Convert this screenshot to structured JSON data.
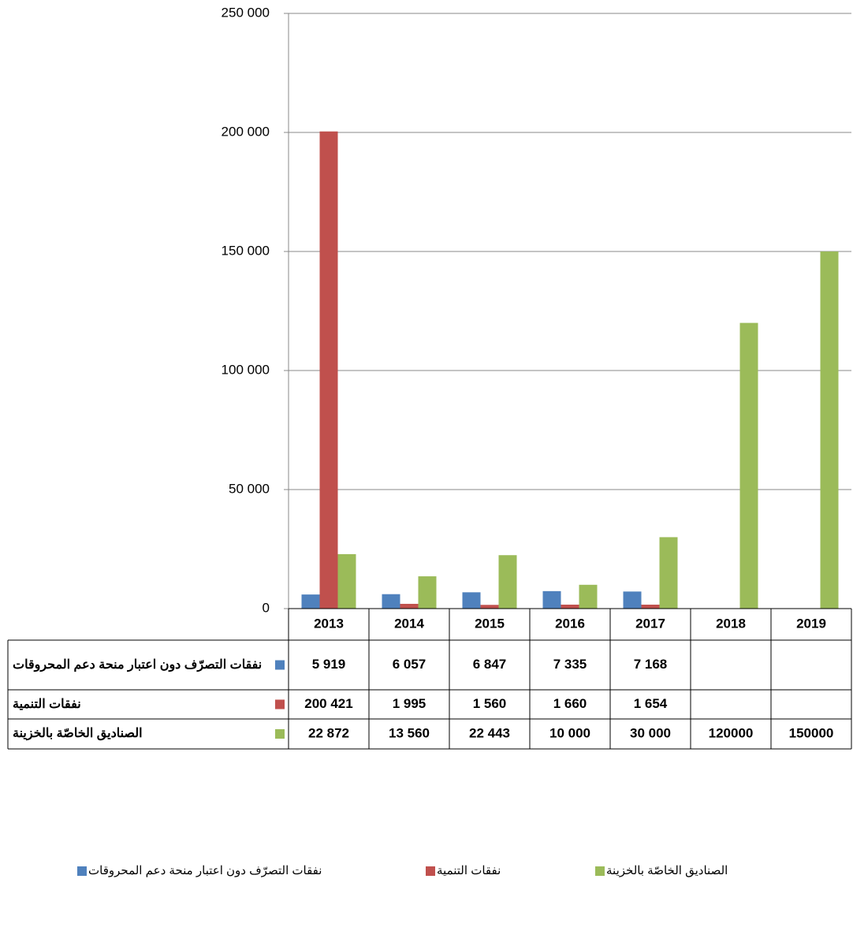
{
  "chart_data": {
    "type": "bar",
    "categories": [
      "2013",
      "2014",
      "2015",
      "2016",
      "2017",
      "2018",
      "2019"
    ],
    "series": [
      {
        "name": "نفقات التصرّف دون اعتبار منحة دعم المحروقات",
        "color": "#4f81bd",
        "values": [
          5919,
          6057,
          6847,
          7335,
          7168,
          null,
          null
        ],
        "value_labels": [
          "5 919",
          "6 057",
          "6 847",
          "7 335",
          "7 168",
          null,
          null
        ]
      },
      {
        "name": "نفقات التنمية",
        "color": "#c0504d",
        "values": [
          200421,
          1995,
          1560,
          1660,
          1654,
          null,
          null
        ],
        "value_labels": [
          "200 421",
          "1 995",
          "1 560",
          "1 660",
          "1 654",
          null,
          null
        ]
      },
      {
        "name": "الصناديق الخاصّة بالخزينة",
        "color": "#9bbb59",
        "values": [
          22872,
          13560,
          22443,
          10000,
          30000,
          120000,
          150000
        ],
        "value_labels": [
          "22 872",
          "13 560",
          "22 443",
          "10 000",
          "30 000",
          "120000",
          "150000"
        ]
      }
    ],
    "ylim": [
      0,
      250000
    ],
    "yticks": [
      0,
      {
        "value": 50000,
        "label": "50 000"
      },
      {
        "value": 100000,
        "label": "100 000"
      },
      {
        "value": 150000,
        "label": "150 000"
      },
      {
        "value": 200000,
        "label": "200 000"
      },
      {
        "value": 250000,
        "label": "250 000"
      }
    ],
    "grid": true,
    "legend": "bottom"
  }
}
